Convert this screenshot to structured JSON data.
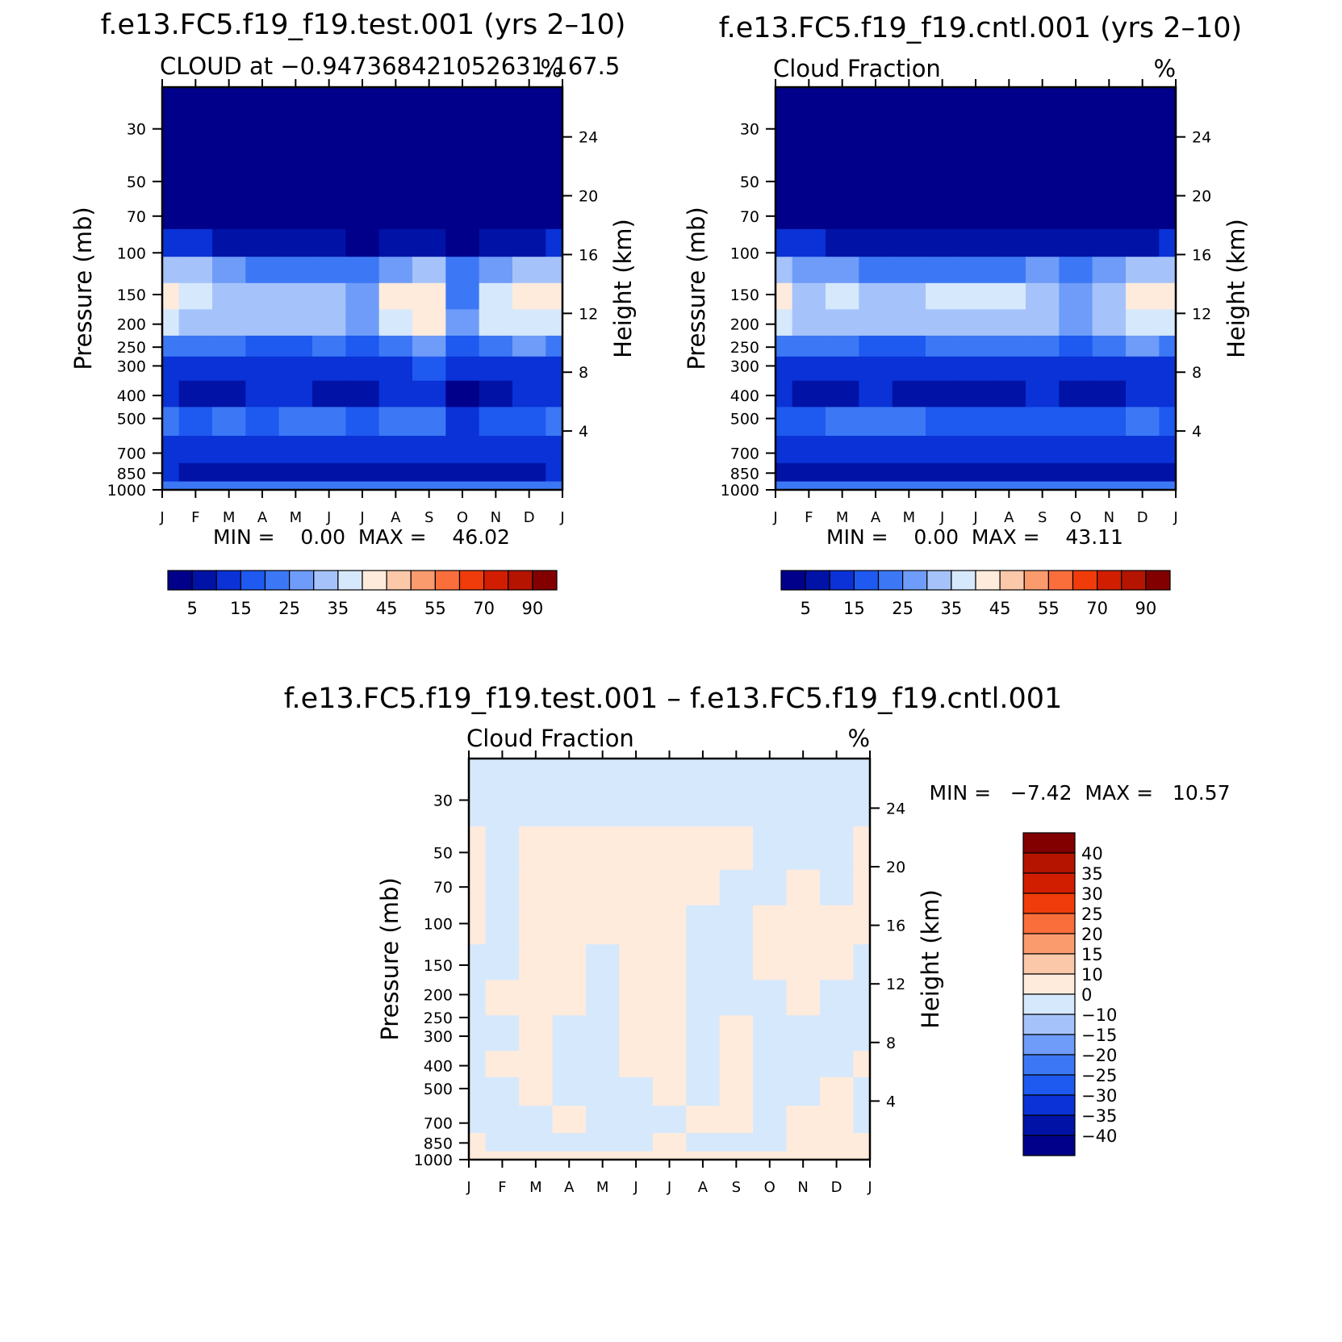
{
  "panels": [
    {
      "id": "test",
      "title": "f.e13.FC5.f19_f19.test.001 (yrs 2–10)",
      "subtitle_left": "CLOUD at −0.947368421052631,167.5",
      "subtitle_right": "%",
      "stats_label": "MIN =    0.00  MAX =    46.02",
      "colorbar": "cloud"
    },
    {
      "id": "cntl",
      "title": "f.e13.FC5.f19_f19.cntl.001 (yrs 2–10)",
      "subtitle_left": "Cloud Fraction",
      "subtitle_right": "%",
      "stats_label": "MIN =    0.00  MAX =    43.11",
      "colorbar": "cloud"
    },
    {
      "id": "diff",
      "title": "f.e13.FC5.f19_f19.test.001 – f.e13.FC5.f19_f19.cntl.001",
      "subtitle_left": "Cloud Fraction",
      "subtitle_right": "%",
      "stats_label": "MIN =   −7.42  MAX =   10.57",
      "colorbar": "diff"
    }
  ],
  "chart_data": [
    {
      "type": "heatmap",
      "panel": "test",
      "title": "f.e13.FC5.f19_f19.test.001 (yrs 2–10)",
      "xlabel": "",
      "ylabel": "Pressure (mb)",
      "ylabel_right": "Height (km)",
      "x_ticks": [
        "J",
        "F",
        "M",
        "A",
        "M",
        "J",
        "J",
        "A",
        "S",
        "O",
        "N",
        "D",
        "J"
      ],
      "y_ticks": [
        30,
        50,
        70,
        100,
        150,
        200,
        250,
        300,
        400,
        500,
        700,
        850,
        1000
      ],
      "y_right_ticks": [
        24,
        20,
        16,
        12,
        8,
        4
      ],
      "ylim": [
        1000,
        20
      ],
      "min": 0.0,
      "max": 46.02,
      "levels": [
        5,
        10,
        15,
        20,
        25,
        30,
        35,
        40,
        45,
        50,
        55,
        60,
        70,
        80,
        90
      ],
      "pressure_levels": [
        30,
        70,
        90,
        120,
        150,
        200,
        250,
        300,
        400,
        500,
        700,
        850,
        1000
      ],
      "values": [
        [
          0,
          0,
          0,
          0,
          0,
          0,
          0,
          0,
          0,
          0,
          0,
          0,
          0
        ],
        [
          0,
          0,
          0,
          0,
          0,
          0,
          0,
          0,
          0,
          0,
          0,
          0,
          0
        ],
        [
          12,
          11,
          8,
          5,
          6,
          5,
          4,
          6,
          5,
          4,
          7,
          9,
          12
        ],
        [
          34,
          30,
          26,
          22,
          23,
          22,
          21,
          29,
          30,
          22,
          28,
          30,
          34
        ],
        [
          42,
          36,
          33,
          31,
          33,
          34,
          26,
          40,
          44,
          24,
          36,
          41,
          42
        ],
        [
          38,
          34,
          32,
          30,
          31,
          32,
          25,
          38,
          40,
          25,
          35,
          39,
          38
        ],
        [
          24,
          22,
          20,
          17,
          18,
          20,
          17,
          24,
          26,
          17,
          22,
          25,
          24
        ],
        [
          14,
          13,
          11,
          10,
          11,
          12,
          10,
          14,
          15,
          10,
          12,
          14,
          14
        ],
        [
          11,
          6,
          9,
          11,
          10,
          7,
          6,
          10,
          10,
          3,
          9,
          11,
          11
        ],
        [
          20,
          19,
          24,
          17,
          23,
          21,
          16,
          22,
          20,
          14,
          17,
          19,
          20
        ],
        [
          14,
          11,
          11,
          12,
          11,
          12,
          12,
          12,
          12,
          12,
          11,
          12,
          14
        ],
        [
          10,
          9,
          9,
          9,
          9,
          9,
          9,
          9,
          9,
          8,
          9,
          9,
          10
        ],
        [
          20,
          20,
          20,
          20,
          20,
          20,
          20,
          20,
          20,
          20,
          20,
          20,
          20
        ]
      ]
    },
    {
      "type": "heatmap",
      "panel": "cntl",
      "title": "f.e13.FC5.f19_f19.cntl.001 (yrs 2–10)",
      "xlabel": "",
      "ylabel": "Pressure (mb)",
      "ylabel_right": "Height (km)",
      "x_ticks": [
        "J",
        "F",
        "M",
        "A",
        "M",
        "J",
        "J",
        "A",
        "S",
        "O",
        "N",
        "D",
        "J"
      ],
      "y_ticks": [
        30,
        50,
        70,
        100,
        150,
        200,
        250,
        300,
        400,
        500,
        700,
        850,
        1000
      ],
      "y_right_ticks": [
        24,
        20,
        16,
        12,
        8,
        4
      ],
      "ylim": [
        1000,
        20
      ],
      "min": 0.0,
      "max": 43.11,
      "levels": [
        5,
        10,
        15,
        20,
        25,
        30,
        35,
        40,
        45,
        50,
        55,
        60,
        70,
        80,
        90
      ],
      "pressure_levels": [
        30,
        70,
        90,
        120,
        150,
        200,
        250,
        300,
        400,
        500,
        700,
        850,
        1000
      ],
      "values": [
        [
          0,
          0,
          0,
          0,
          0,
          0,
          0,
          0,
          0,
          0,
          0,
          0,
          0
        ],
        [
          0,
          0,
          0,
          0,
          0,
          0,
          0,
          0,
          0,
          0,
          0,
          0,
          0
        ],
        [
          12,
          11,
          8,
          6,
          6,
          5,
          5,
          5,
          6,
          5,
          6,
          9,
          12
        ],
        [
          32,
          29,
          26,
          24,
          24,
          24,
          23,
          24,
          25,
          23,
          27,
          30,
          32
        ],
        [
          40,
          34,
          36,
          33,
          32,
          35,
          36,
          36,
          34,
          28,
          33,
          41,
          40
        ],
        [
          36,
          32,
          34,
          31,
          30,
          33,
          34,
          34,
          32,
          28,
          31,
          39,
          36
        ],
        [
          24,
          22,
          21,
          19,
          19,
          20,
          20,
          20,
          20,
          18,
          21,
          25,
          24
        ],
        [
          14,
          13,
          12,
          11,
          11,
          11,
          11,
          11,
          11,
          11,
          12,
          14,
          14
        ],
        [
          11,
          6,
          9,
          10,
          8,
          6,
          7,
          8,
          10,
          6,
          9,
          11,
          11
        ],
        [
          18,
          18,
          22,
          24,
          22,
          19,
          18,
          18,
          18,
          15,
          17,
          20,
          18
        ],
        [
          13,
          12,
          12,
          12,
          12,
          12,
          12,
          12,
          12,
          12,
          12,
          12,
          13
        ],
        [
          9,
          9,
          9,
          9,
          9,
          9,
          9,
          9,
          9,
          9,
          9,
          9,
          9
        ],
        [
          20,
          20,
          20,
          20,
          20,
          20,
          20,
          20,
          20,
          20,
          20,
          20,
          20
        ]
      ]
    },
    {
      "type": "heatmap",
      "panel": "diff",
      "title": "f.e13.FC5.f19_f19.test.001 – f.e13.FC5.f19_f19.cntl.001",
      "xlabel": "",
      "ylabel": "Pressure (mb)",
      "ylabel_right": "Height (km)",
      "x_ticks": [
        "J",
        "F",
        "M",
        "A",
        "M",
        "J",
        "J",
        "A",
        "S",
        "O",
        "N",
        "D",
        "J"
      ],
      "y_ticks": [
        30,
        50,
        70,
        100,
        150,
        200,
        250,
        300,
        400,
        500,
        700,
        850,
        1000
      ],
      "y_right_ticks": [
        24,
        20,
        16,
        12,
        8,
        4
      ],
      "ylim": [
        1000,
        20
      ],
      "min": -7.42,
      "max": 10.57,
      "levels": [
        -40,
        -35,
        -30,
        -25,
        -20,
        -15,
        -10,
        0,
        10,
        15,
        20,
        25,
        30,
        35,
        40
      ],
      "pressure_levels": [
        30,
        50,
        70,
        100,
        150,
        200,
        300,
        400,
        500,
        700,
        850,
        1000
      ],
      "values": [
        [
          1,
          1,
          1,
          1,
          1,
          1,
          1,
          1,
          1,
          1,
          1,
          1,
          1
        ],
        [
          -1,
          1,
          -1,
          -1,
          -1,
          -1,
          -1,
          -1,
          -1,
          1,
          1,
          1,
          -1
        ],
        [
          -1,
          1,
          -1,
          -1,
          -1,
          -1,
          -1,
          -1,
          1,
          1,
          -1,
          1,
          -1
        ],
        [
          -1,
          1,
          -1,
          -1,
          -1,
          -1,
          -1,
          1,
          1,
          -1,
          -1,
          -1,
          -1
        ],
        [
          1,
          1,
          -1,
          -1,
          1,
          -1,
          -1,
          1,
          3,
          -1,
          -1,
          -1,
          1
        ],
        [
          1,
          -1,
          -1,
          -1,
          1,
          -1,
          -1,
          1,
          1,
          1,
          -1,
          1,
          1
        ],
        [
          1,
          1,
          -1,
          1,
          1,
          -1,
          -1,
          1,
          -1,
          1,
          1,
          1,
          1
        ],
        [
          1,
          -1,
          -1,
          1,
          1,
          -1,
          -1,
          1,
          -1,
          1,
          1,
          1,
          -1
        ],
        [
          1,
          1,
          -1,
          1,
          1,
          1,
          -1,
          1,
          -1,
          1,
          1,
          -1,
          1
        ],
        [
          1,
          1,
          1,
          -1,
          1,
          1,
          1,
          -1,
          -1,
          1,
          -1,
          -1,
          1
        ],
        [
          -1,
          1,
          1,
          1,
          1,
          1,
          -1,
          1,
          1,
          1,
          -1,
          -1,
          -1
        ],
        [
          -1,
          -1,
          -1,
          -1,
          -1,
          -1,
          -1,
          -1,
          -1,
          -1,
          -1,
          -1,
          -1
        ]
      ]
    }
  ],
  "colorbars": {
    "cloud": {
      "colors": [
        "#00008a",
        "#0013a6",
        "#0a32d6",
        "#1e5af0",
        "#3c78f5",
        "#6e9cf8",
        "#a5c3fa",
        "#d6e8fc",
        "#ffebdc",
        "#fcc8aa",
        "#fa9b6e",
        "#fa6e3c",
        "#f03c0a",
        "#d21e00",
        "#b41400",
        "#820000"
      ],
      "labels": [
        "5",
        "15",
        "25",
        "35",
        "45",
        "55",
        "70",
        "90"
      ]
    },
    "diff": {
      "colors": [
        "#00008a",
        "#0013a6",
        "#0a32d6",
        "#1e5af0",
        "#3c78f5",
        "#6e9cf8",
        "#a5c3fa",
        "#d6e8fc",
        "#ffebdc",
        "#fcc8aa",
        "#fa9b6e",
        "#fa6e3c",
        "#f03c0a",
        "#d21e00",
        "#b41400",
        "#820000"
      ],
      "labels": [
        "40",
        "35",
        "30",
        "25",
        "20",
        "15",
        "10",
        "0",
        "−10",
        "−15",
        "−20",
        "−25",
        "−30",
        "−35",
        "−40"
      ]
    }
  }
}
